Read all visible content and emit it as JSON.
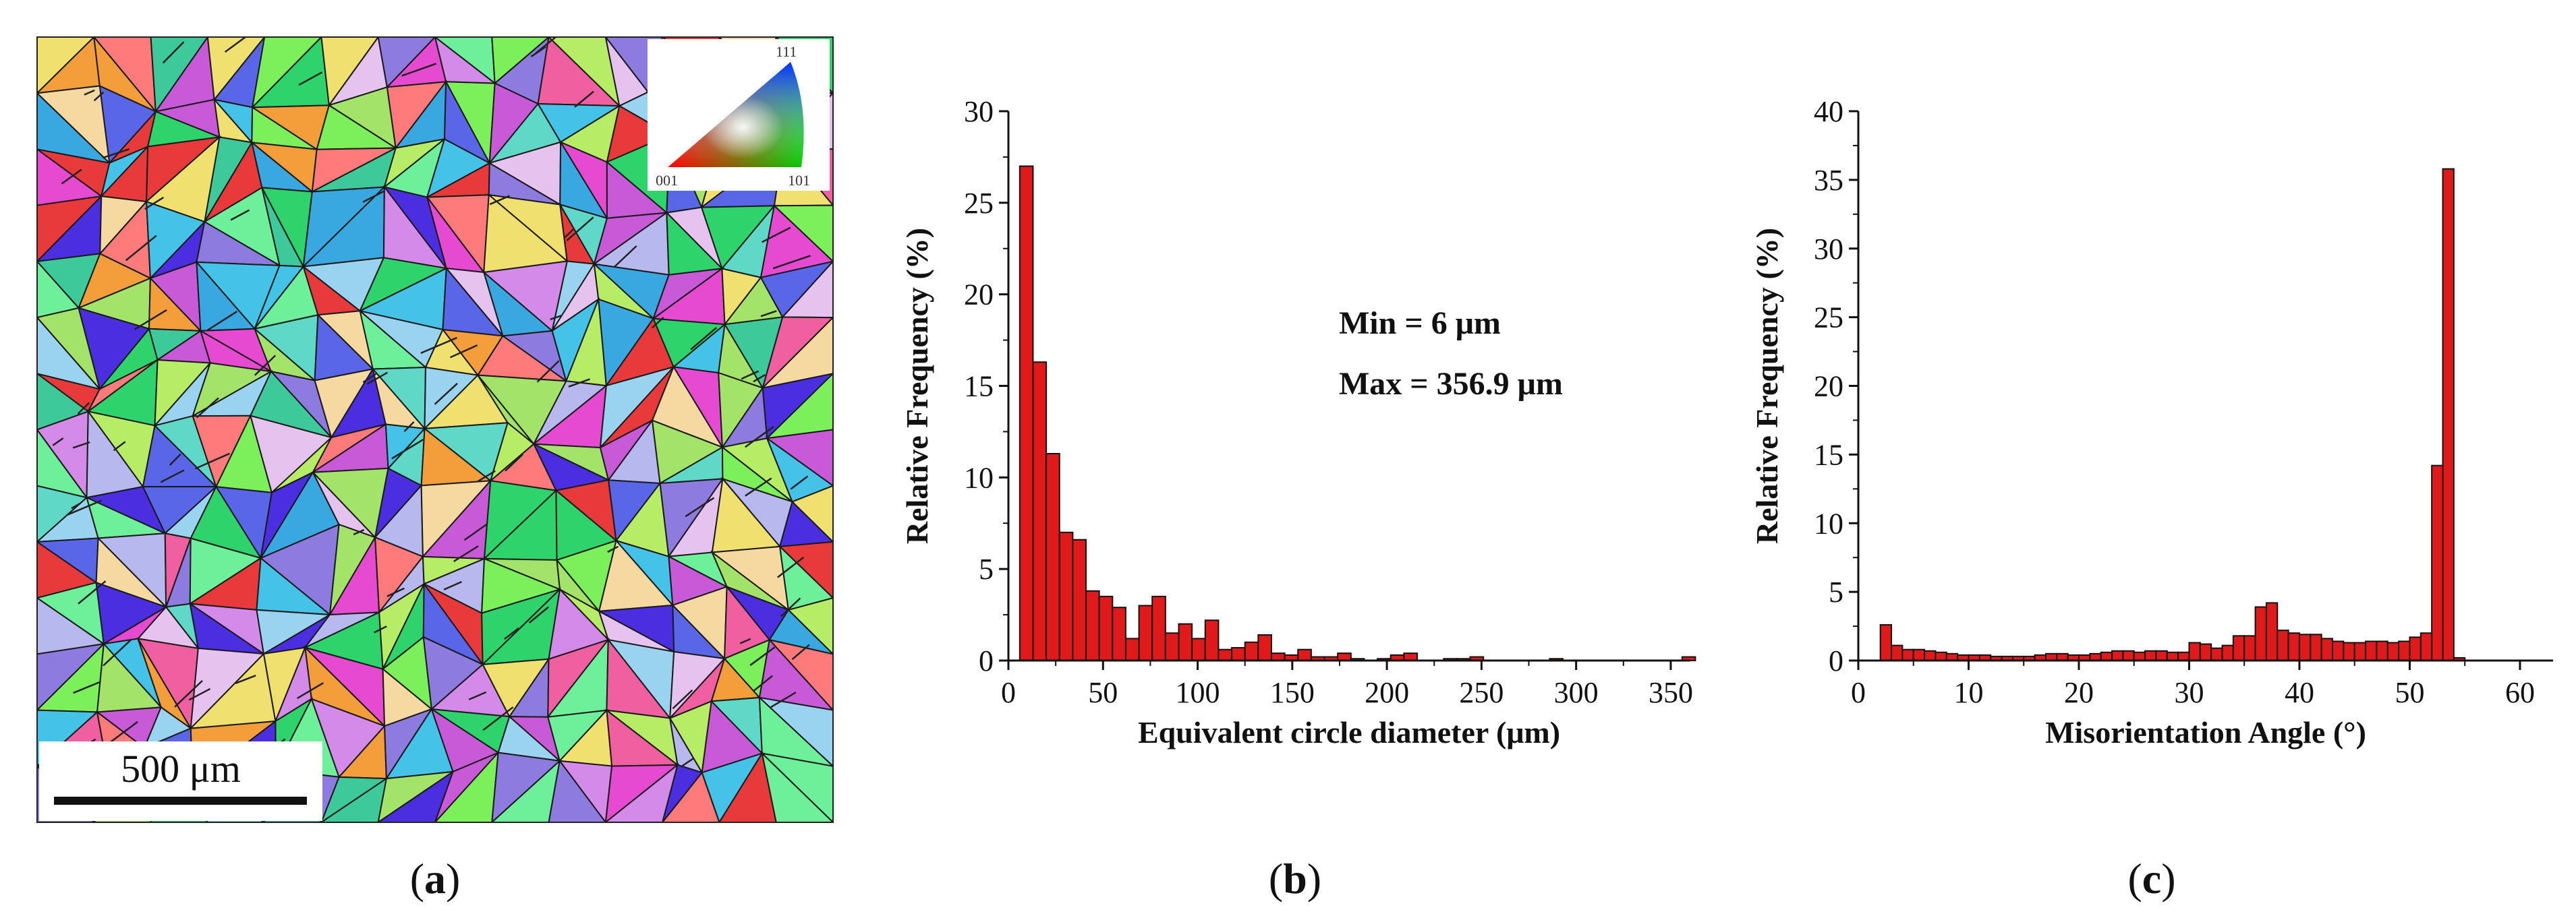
{
  "figure": {
    "panels": [
      {
        "id": "a",
        "caption_open": "(",
        "caption_letter": "a",
        "caption_close": ")"
      },
      {
        "id": "b",
        "caption_open": "(",
        "caption_letter": "b",
        "caption_close": ")"
      },
      {
        "id": "c",
        "caption_open": "(",
        "caption_letter": "c",
        "caption_close": ")"
      }
    ]
  },
  "ebsd_map": {
    "scale_bar_label": "500 μm",
    "legend": {
      "corner_top": "111",
      "corner_left": "001",
      "corner_right": "101"
    },
    "colors": [
      "#2fd36b",
      "#7cf05a",
      "#b7ec67",
      "#e64ad0",
      "#f05fa0",
      "#5a66e8",
      "#8e7be0",
      "#45c2e8",
      "#5fd8c7",
      "#efe070",
      "#f39e3a",
      "#e83a3a",
      "#b6b8ee",
      "#d48ae8",
      "#6ef09a",
      "#9ad3f0",
      "#f5d9a0",
      "#4a2ee0",
      "#c85ad8",
      "#39a8e0",
      "#e6c3ef",
      "#a4e36a",
      "#ff7a7a",
      "#3ec99a"
    ]
  },
  "chart_data": [
    {
      "type": "bar",
      "title": "",
      "xlabel": "Equivalent circle diameter (μm)",
      "ylabel": "Relative Frequency (%)",
      "xlim": [
        0,
        360
      ],
      "ylim": [
        0,
        30
      ],
      "xticks": [
        0,
        50,
        100,
        150,
        200,
        250,
        300,
        350
      ],
      "yticks": [
        0,
        5,
        10,
        15,
        20,
        25,
        30
      ],
      "bin_width": 7,
      "bin_start": 6,
      "values": [
        27.0,
        16.3,
        11.3,
        7.0,
        6.6,
        3.8,
        3.5,
        2.9,
        1.2,
        3.0,
        3.5,
        1.5,
        2.0,
        1.2,
        2.2,
        0.6,
        0.7,
        1.0,
        1.4,
        0.4,
        0.3,
        0.6,
        0.2,
        0.2,
        0.4,
        0.1,
        0.0,
        0.1,
        0.3,
        0.4,
        0.0,
        0.0,
        0.1,
        0.1,
        0.2,
        0.0,
        0.0,
        0.0,
        0.0,
        0.0,
        0.1,
        0.0,
        0.0,
        0.0,
        0.0,
        0.0,
        0.0,
        0.0,
        0.0,
        0.0,
        0.2
      ],
      "bar_color": "#e01a1a",
      "annotations": [
        "Min = 6 μm",
        "Max = 356.9 μm"
      ]
    },
    {
      "type": "bar",
      "title": "",
      "xlabel": "Misorientation Angle (°)",
      "ylabel": "Relative Frequency (%)",
      "xlim": [
        0,
        63
      ],
      "ylim": [
        0,
        40
      ],
      "xticks": [
        0,
        10,
        20,
        30,
        40,
        50,
        60
      ],
      "yticks": [
        0,
        5,
        10,
        15,
        20,
        25,
        30,
        35,
        40
      ],
      "bin_width": 1,
      "bin_start": 2,
      "values": [
        2.6,
        1.1,
        0.8,
        0.8,
        0.7,
        0.6,
        0.5,
        0.4,
        0.4,
        0.4,
        0.3,
        0.3,
        0.3,
        0.3,
        0.4,
        0.5,
        0.5,
        0.4,
        0.4,
        0.5,
        0.6,
        0.7,
        0.7,
        0.6,
        0.7,
        0.7,
        0.6,
        0.6,
        1.3,
        1.2,
        0.9,
        1.1,
        1.8,
        1.8,
        3.9,
        4.2,
        2.2,
        2.0,
        1.9,
        1.9,
        1.6,
        1.4,
        1.3,
        1.3,
        1.4,
        1.4,
        1.3,
        1.4,
        1.7,
        2.0,
        14.2,
        35.8,
        0.2
      ],
      "bar_color": "#e01a1a",
      "annotations": []
    }
  ]
}
